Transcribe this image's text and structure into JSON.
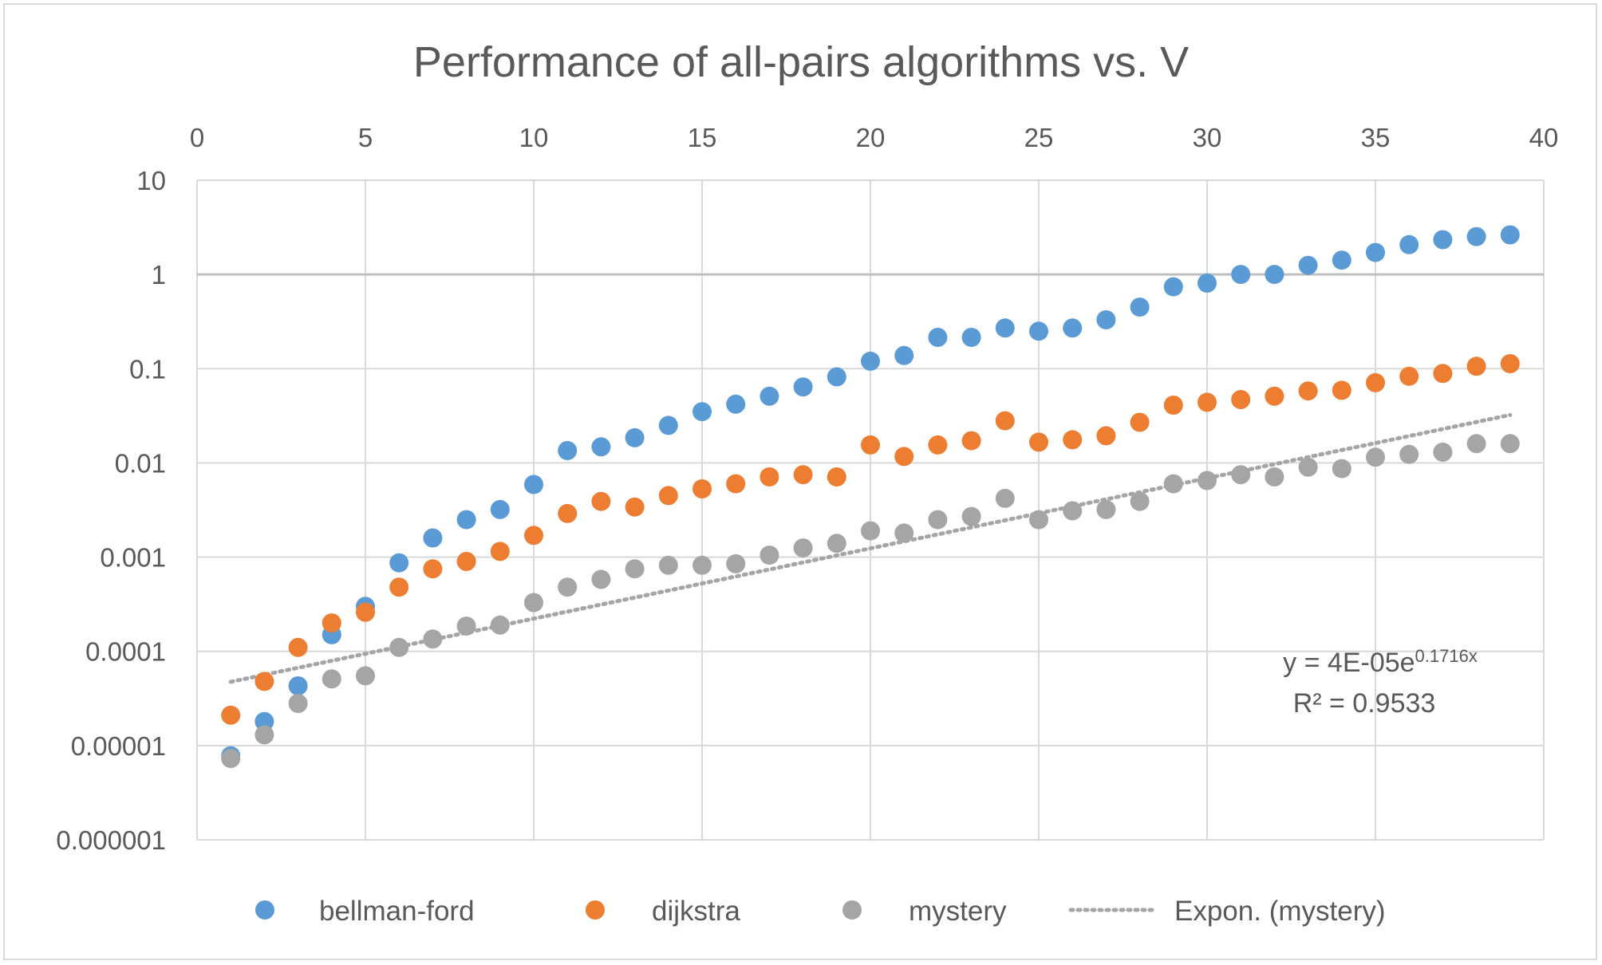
{
  "chart_data": {
    "type": "scatter",
    "title": "Performance of all-pairs algorithms vs. V",
    "xlabel": "",
    "ylabel": "",
    "x_axis_position": "top",
    "xlim": [
      0,
      40
    ],
    "x_ticks": [
      "0",
      "5",
      "10",
      "15",
      "20",
      "25",
      "30",
      "35",
      "40"
    ],
    "y_scale": "log",
    "ylim": [
      1e-06,
      10
    ],
    "y_ticks": [
      "10",
      "1",
      "0.1",
      "0.01",
      "0.001",
      "0.0001",
      "0.00001",
      "0.000001"
    ],
    "grid": true,
    "legend_position": "bottom",
    "series": [
      {
        "name": "bellman-ford",
        "color": "#5B9BD5",
        "x": [
          1,
          2,
          3,
          4,
          5,
          6,
          7,
          8,
          9,
          10,
          11,
          12,
          13,
          14,
          15,
          16,
          17,
          18,
          19,
          20,
          21,
          22,
          23,
          24,
          25,
          26,
          27,
          28,
          29,
          30,
          31,
          32,
          33,
          34,
          35,
          36,
          37,
          38,
          39
        ],
        "y": [
          7.8e-06,
          1.8e-05,
          4.3e-05,
          0.00015,
          0.0003,
          0.00087,
          0.0016,
          0.0025,
          0.0032,
          0.0059,
          0.0135,
          0.0148,
          0.0185,
          0.025,
          0.035,
          0.042,
          0.051,
          0.064,
          0.082,
          0.12,
          0.138,
          0.215,
          0.215,
          0.27,
          0.25,
          0.27,
          0.33,
          0.45,
          0.74,
          0.81,
          1.0,
          1.0,
          1.25,
          1.42,
          1.71,
          2.07,
          2.34,
          2.52,
          2.63
        ]
      },
      {
        "name": "dijkstra",
        "color": "#ED7D31",
        "x": [
          1,
          2,
          3,
          4,
          5,
          6,
          7,
          8,
          9,
          10,
          11,
          12,
          13,
          14,
          15,
          16,
          17,
          18,
          19,
          20,
          21,
          22,
          23,
          24,
          25,
          26,
          27,
          28,
          29,
          30,
          31,
          32,
          33,
          34,
          35,
          36,
          37,
          38,
          39
        ],
        "y": [
          2.1e-05,
          4.8e-05,
          0.00011,
          0.0002,
          0.00026,
          0.00048,
          0.00075,
          0.0009,
          0.00115,
          0.0017,
          0.0029,
          0.0039,
          0.0034,
          0.0045,
          0.0053,
          0.006,
          0.0071,
          0.0075,
          0.0071,
          0.0155,
          0.0117,
          0.0155,
          0.0172,
          0.028,
          0.0166,
          0.0176,
          0.0194,
          0.027,
          0.041,
          0.044,
          0.047,
          0.051,
          0.058,
          0.059,
          0.071,
          0.083,
          0.089,
          0.106,
          0.113
        ]
      },
      {
        "name": "mystery",
        "color": "#A5A5A5",
        "x": [
          1,
          2,
          3,
          4,
          5,
          6,
          7,
          8,
          9,
          10,
          11,
          12,
          13,
          14,
          15,
          16,
          17,
          18,
          19,
          20,
          21,
          22,
          23,
          24,
          25,
          26,
          27,
          28,
          29,
          30,
          31,
          32,
          33,
          34,
          35,
          36,
          37,
          38,
          39
        ],
        "y": [
          7.3e-06,
          1.3e-05,
          2.8e-05,
          5.1e-05,
          5.5e-05,
          0.00011,
          0.000135,
          0.000185,
          0.00019,
          0.00033,
          0.00048,
          0.00058,
          0.00075,
          0.00082,
          0.00082,
          0.00085,
          0.00105,
          0.00125,
          0.0014,
          0.0019,
          0.0018,
          0.0025,
          0.0027,
          0.0042,
          0.0025,
          0.0031,
          0.0032,
          0.0039,
          0.006,
          0.0065,
          0.0075,
          0.0071,
          0.009,
          0.0087,
          0.0115,
          0.0123,
          0.013,
          0.016,
          0.016
        ]
      }
    ],
    "trendline": {
      "name": "Expon. (mystery)",
      "color": "#A5A5A5",
      "style": "dotted",
      "a": 4e-05,
      "b": 0.1716,
      "x_range": [
        1,
        39
      ],
      "equation": "y = 4E-05e",
      "equation_exponent": "0.1716x",
      "r_squared": "R² = 0.9533"
    }
  }
}
